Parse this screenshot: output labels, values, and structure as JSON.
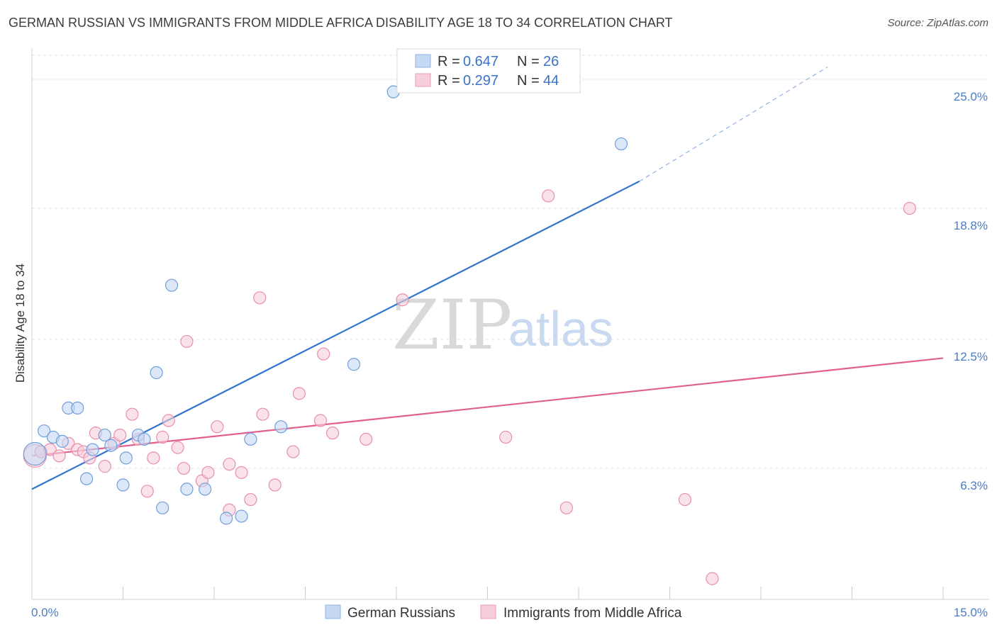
{
  "title": "GERMAN RUSSIAN VS IMMIGRANTS FROM MIDDLE AFRICA DISABILITY AGE 18 TO 34 CORRELATION CHART",
  "source": "Source: ZipAtlas.com",
  "colors": {
    "blue": "#4a90d9",
    "blue_fill": "#c5d9f3",
    "pink": "#e0608e",
    "pink_fill": "#f7cfdc",
    "axis_label": "#4a7cc9"
  },
  "chart_data": {
    "type": "scatter",
    "title": "GERMAN RUSSIAN VS IMMIGRANTS FROM MIDDLE AFRICA DISABILITY AGE 18 TO 34 CORRELATION CHART",
    "xlabel": "",
    "ylabel": "Disability Age 18 to 34",
    "xlim": [
      0,
      15
    ],
    "ylim": [
      0,
      26
    ],
    "x_tick_labels": [
      "0.0%",
      "15.0%"
    ],
    "y_ticks": [
      6.3,
      12.5,
      18.8,
      25.0
    ],
    "y_tick_labels": [
      "6.3%",
      "12.5%",
      "18.8%",
      "25.0%"
    ],
    "grid": true,
    "legend_top": {
      "rows": [
        {
          "r_label": "R =",
          "r_value": "0.647",
          "n_label": "N =",
          "n_value": "26"
        },
        {
          "r_label": "R =",
          "r_value": "0.297",
          "n_label": "N =",
          "n_value": "44"
        }
      ]
    },
    "legend_bottom": [
      "German Russians",
      "Immigrants from Middle Africa"
    ],
    "watermark": {
      "zip": "ZIP",
      "atlas": "atlas"
    },
    "series": [
      {
        "name": "German Russians",
        "color": "#4a90d9",
        "trend": {
          "x0": 0,
          "y0": 5.3,
          "x1": 10.0,
          "y1": 20.1,
          "dash_x1": 13.1,
          "dash_y1": 25.6
        },
        "points": [
          [
            0.2,
            8.1
          ],
          [
            0.35,
            7.8
          ],
          [
            0.5,
            7.6
          ],
          [
            0.6,
            9.2
          ],
          [
            0.75,
            9.2
          ],
          [
            0.9,
            5.8
          ],
          [
            1.0,
            7.2
          ],
          [
            1.2,
            7.9
          ],
          [
            1.3,
            7.4
          ],
          [
            1.5,
            5.5
          ],
          [
            1.55,
            6.8
          ],
          [
            1.75,
            7.9
          ],
          [
            1.85,
            7.7
          ],
          [
            2.05,
            10.9
          ],
          [
            2.15,
            4.4
          ],
          [
            2.3,
            15.1
          ],
          [
            2.55,
            5.3
          ],
          [
            2.85,
            5.3
          ],
          [
            3.2,
            3.9
          ],
          [
            3.45,
            4.0
          ],
          [
            3.6,
            7.7
          ],
          [
            4.1,
            8.3
          ],
          [
            5.3,
            11.3
          ],
          [
            5.95,
            24.4
          ],
          [
            9.7,
            21.9
          ],
          [
            0.05,
            7.0
          ]
        ]
      },
      {
        "name": "Immigrants from Middle Africa",
        "color": "#e0608e",
        "trend": {
          "x0": 0,
          "y0": 6.9,
          "x1": 15.0,
          "y1": 11.6
        },
        "points": [
          [
            0.05,
            6.9
          ],
          [
            0.15,
            7.1
          ],
          [
            0.3,
            7.2
          ],
          [
            0.45,
            6.9
          ],
          [
            0.6,
            7.5
          ],
          [
            0.75,
            7.2
          ],
          [
            0.85,
            7.1
          ],
          [
            0.95,
            6.8
          ],
          [
            1.05,
            8.0
          ],
          [
            1.2,
            6.4
          ],
          [
            1.35,
            7.5
          ],
          [
            1.45,
            7.9
          ],
          [
            1.65,
            8.9
          ],
          [
            1.75,
            7.7
          ],
          [
            1.9,
            5.2
          ],
          [
            2.0,
            6.8
          ],
          [
            2.15,
            7.8
          ],
          [
            2.25,
            8.6
          ],
          [
            2.4,
            7.3
          ],
          [
            2.5,
            6.3
          ],
          [
            2.55,
            12.4
          ],
          [
            2.8,
            5.7
          ],
          [
            2.9,
            6.1
          ],
          [
            3.05,
            8.3
          ],
          [
            3.25,
            6.5
          ],
          [
            3.25,
            4.3
          ],
          [
            3.45,
            6.1
          ],
          [
            3.6,
            4.8
          ],
          [
            3.75,
            14.5
          ],
          [
            3.8,
            8.9
          ],
          [
            4.0,
            5.5
          ],
          [
            4.3,
            7.1
          ],
          [
            4.4,
            9.9
          ],
          [
            4.75,
            8.6
          ],
          [
            4.8,
            11.8
          ],
          [
            4.95,
            8.0
          ],
          [
            5.5,
            7.7
          ],
          [
            6.1,
            14.4
          ],
          [
            7.8,
            7.8
          ],
          [
            8.5,
            19.4
          ],
          [
            8.8,
            4.4
          ],
          [
            10.75,
            4.8
          ],
          [
            11.2,
            1.0
          ],
          [
            14.45,
            18.8
          ]
        ]
      }
    ]
  }
}
